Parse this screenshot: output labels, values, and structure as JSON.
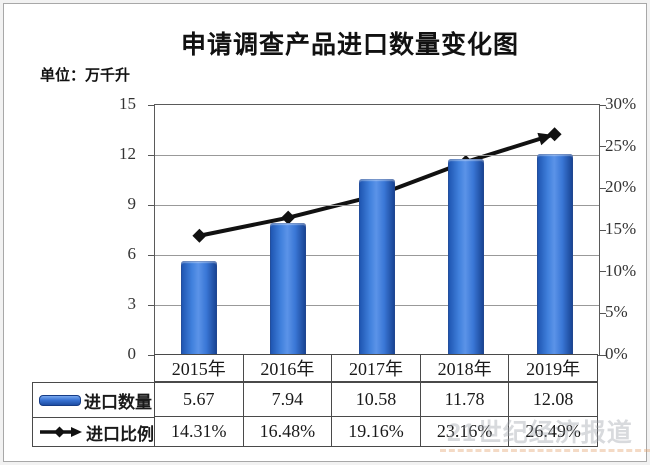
{
  "frame": {
    "background": "#ffffff",
    "border_color": "#a8a8a8"
  },
  "header": {
    "title": "申请调查产品进口数量变化图",
    "unit_label": "单位：万千升"
  },
  "chart_data": {
    "type": "bar+line",
    "title": "申请调查产品进口数量变化图",
    "unit": "万千升",
    "categories": [
      "2015年",
      "2016年",
      "2017年",
      "2018年",
      "2019年"
    ],
    "series": [
      {
        "name": "进口数量",
        "type": "bar",
        "axis": "left",
        "values": [
          5.67,
          7.94,
          10.58,
          11.78,
          12.08
        ],
        "color": "#2e6fce"
      },
      {
        "name": "进口比例",
        "type": "line",
        "axis": "right",
        "values": [
          14.31,
          16.48,
          19.16,
          23.16,
          26.49
        ],
        "display": [
          "14.31%",
          "16.48%",
          "19.16%",
          "23.16%",
          "26.49%"
        ],
        "color": "#111111",
        "marker": "diamond",
        "arrow_end": true
      }
    ],
    "left_axis": {
      "min": 0,
      "max": 15,
      "ticks": [
        0,
        3,
        6,
        9,
        12,
        15
      ]
    },
    "right_axis": {
      "min": 0,
      "max": 30,
      "tick_labels": [
        "0%",
        "5%",
        "10%",
        "15%",
        "20%",
        "25%",
        "30%"
      ]
    },
    "grid": "horizontal",
    "legend_position": "table-left"
  },
  "table": {
    "header_cells": [
      "2015年",
      "2016年",
      "2017年",
      "2018年",
      "2019年"
    ],
    "rows": [
      {
        "label": "进口数量",
        "cells": [
          "5.67",
          "7.94",
          "10.58",
          "11.78",
          "12.08"
        ]
      },
      {
        "label": "进口比例",
        "cells": [
          "14.31%",
          "16.48%",
          "19.16%",
          "23.16%",
          "26.49%"
        ]
      }
    ]
  },
  "watermark": {
    "text": "21世纪经济报道"
  }
}
